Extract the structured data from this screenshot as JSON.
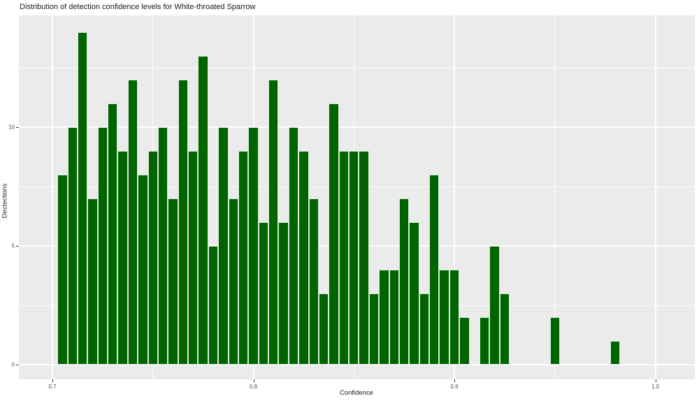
{
  "title": "Distribution of detection confidence levels for White-throated Sparrow",
  "colors": {
    "bar_fill": "#006400",
    "bar_border": "#d9ecd9",
    "panel_background": "#EBEBEB",
    "gridline": "#ffffff",
    "tick_text": "#4d4d4d",
    "title_text": "#1a1a1a",
    "tick_mark": "#333333"
  },
  "chart_data": {
    "type": "bar",
    "subtype": "histogram",
    "title": "Distribution of detection confidence levels for White-throated Sparrow",
    "xlabel": "Confidence",
    "ylabel": "Dectections",
    "bin_width": 0.005,
    "bin_centers": [
      0.705,
      0.71,
      0.715,
      0.72,
      0.725,
      0.73,
      0.735,
      0.74,
      0.745,
      0.75,
      0.755,
      0.76,
      0.765,
      0.77,
      0.775,
      0.78,
      0.785,
      0.79,
      0.795,
      0.8,
      0.805,
      0.81,
      0.815,
      0.82,
      0.825,
      0.83,
      0.835,
      0.84,
      0.845,
      0.85,
      0.855,
      0.86,
      0.865,
      0.87,
      0.875,
      0.88,
      0.885,
      0.89,
      0.895,
      0.9,
      0.905,
      0.91,
      0.915,
      0.92,
      0.925,
      0.93,
      0.935,
      0.94,
      0.945,
      0.95,
      0.955,
      0.96,
      0.965,
      0.97,
      0.975,
      0.98
    ],
    "counts": [
      8,
      10,
      14,
      7,
      10,
      11,
      9,
      12,
      8,
      9,
      10,
      7,
      12,
      9,
      13,
      5,
      10,
      7,
      9,
      10,
      6,
      12,
      6,
      10,
      9,
      7,
      3,
      11,
      9,
      9,
      9,
      3,
      4,
      4,
      7,
      6,
      3,
      8,
      4,
      4,
      2,
      0,
      2,
      5,
      3,
      0,
      0,
      0,
      0,
      2,
      0,
      0,
      0,
      0,
      0,
      1
    ],
    "x_ticks": [
      0.7,
      0.8,
      0.9,
      1.0
    ],
    "x_tick_labels": [
      "0.7",
      "0.8",
      "0.9",
      "1.0"
    ],
    "x_minor_ticks": [
      0.75,
      0.85,
      0.95
    ],
    "y_ticks": [
      0,
      5,
      10
    ],
    "y_tick_labels": [
      "0",
      "5",
      "10"
    ],
    "y_minor_ticks": [
      2.5,
      7.5,
      12.5
    ],
    "xlim": [
      0.684,
      1.02
    ],
    "ylim": [
      -0.7,
      14.7
    ],
    "grid": true,
    "legend": false,
    "theme": "ggplot-gray"
  }
}
